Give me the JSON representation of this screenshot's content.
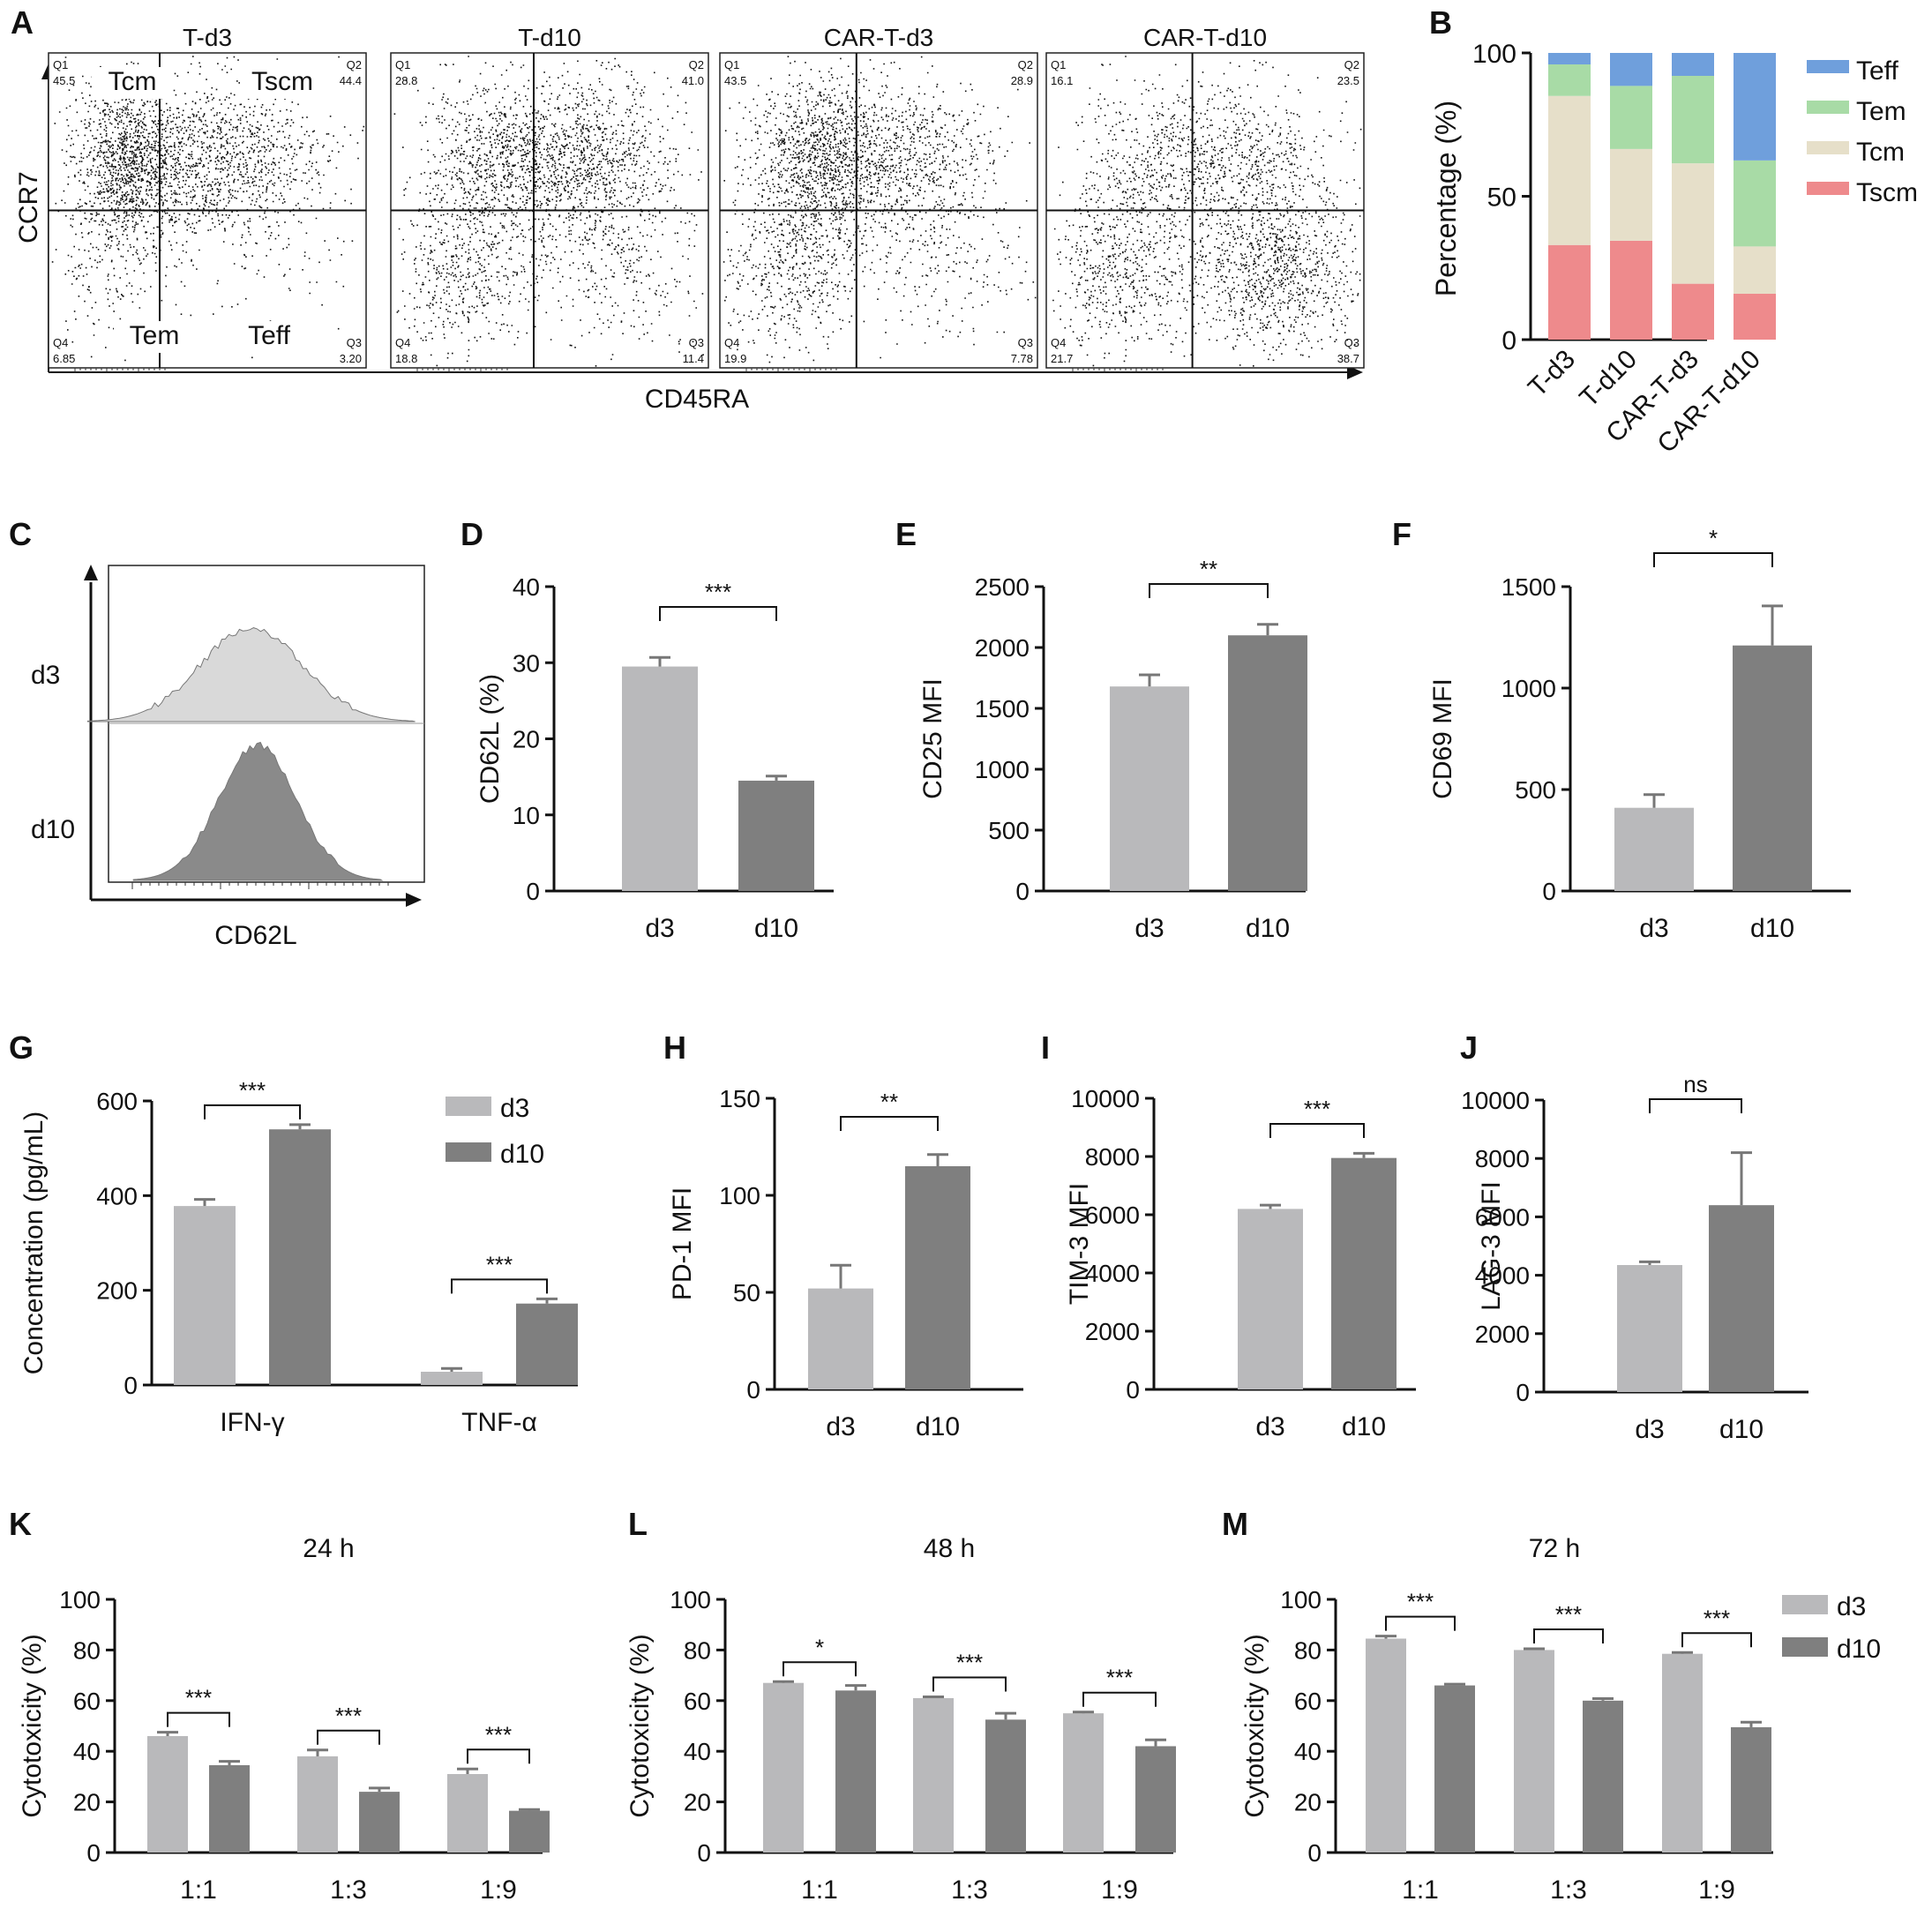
{
  "figure": {
    "colors": {
      "d3": "#b9b9bb",
      "d10": "#7f7f7f",
      "Tscm": "#ee8a8c",
      "Tcm": "#e6dfc9",
      "Tem": "#a8dba6",
      "Teff": "#6f9fdc",
      "hist_d3": "#d9d9d9",
      "hist_d10": "#8a8a8a"
    }
  },
  "chart_data": [
    {
      "id": "A",
      "type": "scatter",
      "letter": "A",
      "title": "CCR7 vs CD45RA flow cytometry",
      "xlabel": "CD45RA",
      "ylabel": "CCR7",
      "subset_labels": {
        "q1": "Tcm",
        "q2": "Tscm",
        "q3": "Teff",
        "q4": "Tem"
      },
      "panels": [
        {
          "name": "T-d3",
          "q1_tag": "Q1",
          "q2_tag": "Q2",
          "q3_tag": "Q3",
          "q4_tag": "Q4",
          "q1": "45.5",
          "q2": "44.4",
          "q3": "3.20",
          "q4": "6.85"
        },
        {
          "name": "T-d10",
          "q1_tag": "Q1",
          "q2_tag": "Q2",
          "q3_tag": "Q3",
          "q4_tag": "Q4",
          "q1": "28.8",
          "q2": "41.0",
          "q3": "11.4",
          "q4": "18.8"
        },
        {
          "name": "CAR-T-d3",
          "q1_tag": "Q1",
          "q2_tag": "Q2",
          "q3_tag": "Q3",
          "q4_tag": "Q4",
          "q1": "43.5",
          "q2": "28.9",
          "q3": "7.78",
          "q4": "19.9"
        },
        {
          "name": "CAR-T-d10",
          "q1_tag": "Q1",
          "q2_tag": "Q2",
          "q3_tag": "Q3",
          "q4_tag": "Q4",
          "q1": "16.1",
          "q2": "23.5",
          "q3": "38.7",
          "q4": "21.7"
        }
      ]
    },
    {
      "id": "B",
      "type": "bar",
      "letter": "B",
      "stacked": true,
      "categories": [
        "T-d3",
        "T-d10",
        "CAR-T-d3",
        "CAR-T-d10"
      ],
      "series": [
        {
          "name": "Tscm",
          "values": [
            33,
            34.5,
            19.5,
            16
          ]
        },
        {
          "name": "Tcm",
          "values": [
            52,
            32,
            42,
            16.5
          ]
        },
        {
          "name": "Tem",
          "values": [
            11,
            22,
            30.5,
            30
          ]
        },
        {
          "name": "Teff",
          "values": [
            4,
            11.5,
            8,
            37.5
          ]
        }
      ],
      "legend": [
        "Teff",
        "Tem",
        "Tcm",
        "Tscm"
      ],
      "ylabel": "Percentage (%)",
      "ylim": [
        0,
        100
      ],
      "yticks": [
        "0",
        "50",
        "100"
      ]
    },
    {
      "id": "C",
      "type": "area",
      "letter": "C",
      "xlabel": "CD62L",
      "series_labels": [
        "d3",
        "d10"
      ]
    },
    {
      "id": "D",
      "type": "bar",
      "letter": "D",
      "ylabel": "CD62L (%)",
      "categories": [
        "d3",
        "d10"
      ],
      "values": [
        29.5,
        14.5
      ],
      "errors": [
        1.2,
        0.6
      ],
      "ylim": [
        0,
        40
      ],
      "yticks": [
        "0",
        "10",
        "20",
        "30",
        "40"
      ],
      "sig": "***"
    },
    {
      "id": "E",
      "type": "bar",
      "letter": "E",
      "ylabel": "CD25 MFI",
      "categories": [
        "d3",
        "d10"
      ],
      "values": [
        1680,
        2100
      ],
      "errors": [
        95,
        90
      ],
      "ylim": [
        0,
        2500
      ],
      "yticks": [
        "0",
        "500",
        "1000",
        "1500",
        "2000",
        "2500"
      ],
      "sig": "**"
    },
    {
      "id": "F",
      "type": "bar",
      "letter": "F",
      "ylabel": "CD69 MFI",
      "categories": [
        "d3",
        "d10"
      ],
      "values": [
        410,
        1210
      ],
      "errors": [
        65,
        195
      ],
      "ylim": [
        0,
        1500
      ],
      "yticks": [
        "0",
        "500",
        "1000",
        "1500"
      ],
      "sig": "*"
    },
    {
      "id": "G",
      "type": "bar",
      "letter": "G",
      "grouped": true,
      "categories": [
        "IFN-γ",
        "TNF-α"
      ],
      "series": [
        {
          "name": "d3",
          "values": [
            378,
            28
          ],
          "errors": [
            14,
            7
          ]
        },
        {
          "name": "d10",
          "values": [
            540,
            172
          ],
          "errors": [
            10,
            10
          ]
        }
      ],
      "ylabel": "Concentration (pg/mL)",
      "ylim": [
        0,
        600
      ],
      "yticks": [
        "0",
        "200",
        "400",
        "600"
      ],
      "sig": [
        "***",
        "***"
      ]
    },
    {
      "id": "H",
      "type": "bar",
      "letter": "H",
      "ylabel": "PD-1 MFI",
      "categories": [
        "d3",
        "d10"
      ],
      "values": [
        52,
        115
      ],
      "errors": [
        12,
        6
      ],
      "ylim": [
        0,
        150
      ],
      "yticks": [
        "0",
        "50",
        "100",
        "150"
      ],
      "sig": "**"
    },
    {
      "id": "I",
      "type": "bar",
      "letter": "I",
      "ylabel": "TIM-3 MFI",
      "categories": [
        "d3",
        "d10"
      ],
      "values": [
        6200,
        7950
      ],
      "errors": [
        130,
        160
      ],
      "ylim": [
        0,
        10000
      ],
      "yticks": [
        "0",
        "2000",
        "4000",
        "6000",
        "8000",
        "10000"
      ],
      "sig": "***"
    },
    {
      "id": "J",
      "type": "bar",
      "letter": "J",
      "ylabel": "LAG-3 MFI",
      "categories": [
        "d3",
        "d10"
      ],
      "values": [
        4350,
        6400
      ],
      "errors": [
        110,
        1800
      ],
      "ylim": [
        0,
        10000
      ],
      "yticks": [
        "0",
        "2000",
        "4000",
        "6000",
        "8000",
        "10000"
      ],
      "sig": "ns"
    },
    {
      "id": "K",
      "type": "bar",
      "letter": "K",
      "grouped": true,
      "title": "24 h",
      "categories": [
        "1:1",
        "1:3",
        "1:9"
      ],
      "series": [
        {
          "name": "d3",
          "values": [
            46,
            38,
            31
          ],
          "errors": [
            1.5,
            2.5,
            2
          ]
        },
        {
          "name": "d10",
          "values": [
            34.5,
            24,
            16.5
          ],
          "errors": [
            1.5,
            1.5,
            0.5
          ]
        }
      ],
      "ylabel": "Cytotoxicity (%)",
      "ylim": [
        0,
        100
      ],
      "yticks": [
        "0",
        "20",
        "40",
        "60",
        "80",
        "100"
      ],
      "sig": [
        "***",
        "***",
        "***"
      ]
    },
    {
      "id": "L",
      "type": "bar",
      "letter": "L",
      "grouped": true,
      "title": "48 h",
      "categories": [
        "1:1",
        "1:3",
        "1:9"
      ],
      "series": [
        {
          "name": "d3",
          "values": [
            67,
            61,
            55
          ],
          "errors": [
            0.5,
            0.5,
            0.5
          ]
        },
        {
          "name": "d10",
          "values": [
            64,
            52.5,
            42
          ],
          "errors": [
            2,
            2.5,
            2.5
          ]
        }
      ],
      "ylabel": "Cytotoxicity (%)",
      "ylim": [
        0,
        100
      ],
      "yticks": [
        "0",
        "20",
        "40",
        "60",
        "80",
        "100"
      ],
      "sig": [
        "*",
        "***",
        "***"
      ]
    },
    {
      "id": "M",
      "type": "bar",
      "letter": "M",
      "grouped": true,
      "title": "72 h",
      "categories": [
        "1:1",
        "1:3",
        "1:9"
      ],
      "series": [
        {
          "name": "d3",
          "values": [
            84.5,
            80,
            78.5
          ],
          "errors": [
            1,
            0.5,
            0.5
          ]
        },
        {
          "name": "d10",
          "values": [
            66,
            60,
            49.5
          ],
          "errors": [
            0.5,
            0.8,
            2
          ]
        }
      ],
      "ylabel": "Cytotoxicity (%)",
      "ylim": [
        0,
        100
      ],
      "yticks": [
        "0",
        "20",
        "40",
        "60",
        "80",
        "100"
      ],
      "sig": [
        "***",
        "***",
        "***"
      ]
    }
  ]
}
